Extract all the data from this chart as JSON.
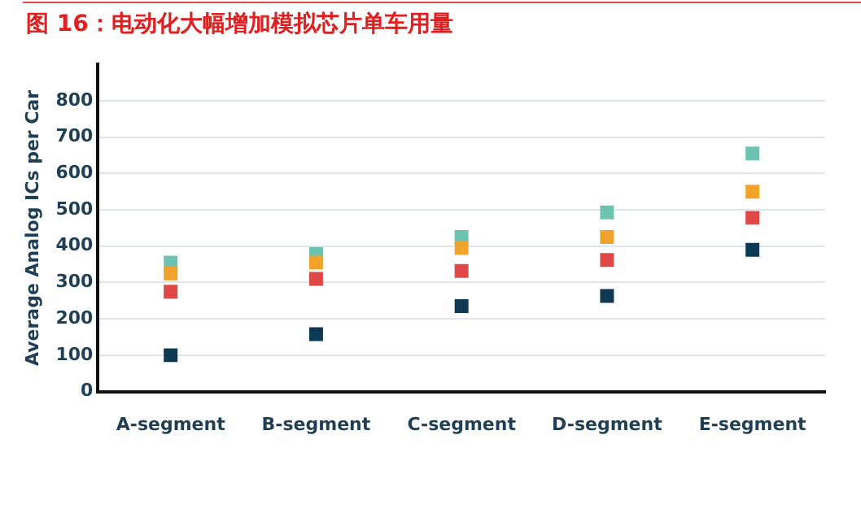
{
  "chart_data": {
    "type": "scatter",
    "title": "图 16：电动化大幅增加模拟芯片单车用量",
    "ylabel": "Average Analog ICs per Car",
    "categories": [
      "A-segment",
      "B-segment",
      "C-segment",
      "D-segment",
      "E-segment"
    ],
    "series": [
      {
        "color": "#0d3a52",
        "values": [
          100,
          158,
          235,
          263,
          390
        ]
      },
      {
        "color": "#e04848",
        "values": [
          275,
          310,
          332,
          362,
          478
        ]
      },
      {
        "color": "#f0a22a",
        "values": [
          325,
          355,
          395,
          425,
          550
        ]
      },
      {
        "color": "#6cc3b0",
        "values": [
          355,
          378,
          425,
          493,
          655
        ]
      }
    ],
    "ylim": [
      0,
      900
    ],
    "yticks": [
      0,
      100,
      200,
      300,
      400,
      500,
      600,
      700,
      800
    ],
    "grid": "y",
    "marker": "square",
    "legend": false
  }
}
